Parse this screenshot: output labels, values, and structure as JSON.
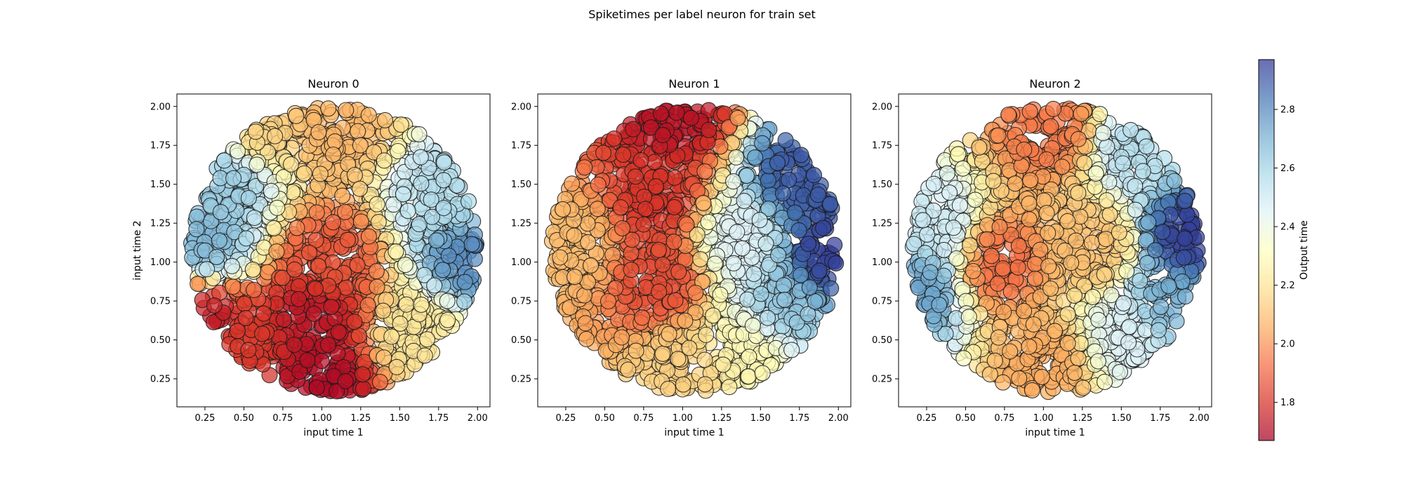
{
  "figure_title": "Spiketimes per label neuron for train set",
  "colorbar": {
    "label": "Output time",
    "range": [
      1.67,
      2.97
    ],
    "ticks": [
      "1.8",
      "2.0",
      "2.2",
      "2.4",
      "2.6",
      "2.8"
    ],
    "tick_values": [
      1.8,
      2.0,
      2.2,
      2.4,
      2.6,
      2.8
    ],
    "colormap": "RdYlBu",
    "colormap_stops": [
      "#a50026",
      "#d73027",
      "#f46d43",
      "#fdae61",
      "#fee090",
      "#ffffbf",
      "#e0f3f8",
      "#abd9e9",
      "#74add1",
      "#4575b4",
      "#313695"
    ]
  },
  "chart_data": [
    {
      "type": "scatter",
      "title": "Neuron 0",
      "xlabel": "input time 1",
      "ylabel": "input time 2",
      "xlim": [
        0.07,
        2.08
      ],
      "ylim": [
        0.07,
        2.08
      ],
      "xticks": [
        "0.25",
        "0.50",
        "0.75",
        "1.00",
        "1.25",
        "1.50",
        "1.75",
        "2.00"
      ],
      "yticks": [
        "0.25",
        "0.50",
        "0.75",
        "1.00",
        "1.25",
        "1.50",
        "1.75",
        "2.00"
      ],
      "color_field": "output time",
      "points_description_field": {
        "disk_center": [
          1.08,
          1.08
        ],
        "disk_radius": 0.92
      },
      "sample_points": [
        {
          "x": 1.0,
          "y": 0.25,
          "c": 1.7
        },
        {
          "x": 0.95,
          "y": 0.65,
          "c": 1.72
        },
        {
          "x": 1.05,
          "y": 1.0,
          "c": 1.88
        },
        {
          "x": 0.6,
          "y": 1.9,
          "c": 2.15
        },
        {
          "x": 1.1,
          "y": 1.9,
          "c": 2.08
        },
        {
          "x": 0.25,
          "y": 1.1,
          "c": 2.7
        },
        {
          "x": 0.35,
          "y": 1.5,
          "c": 2.62
        },
        {
          "x": 1.95,
          "y": 1.05,
          "c": 2.8
        },
        {
          "x": 1.8,
          "y": 1.4,
          "c": 2.55
        },
        {
          "x": 1.6,
          "y": 0.55,
          "c": 2.22
        },
        {
          "x": 0.5,
          "y": 0.45,
          "c": 1.82
        },
        {
          "x": 0.25,
          "y": 0.68,
          "c": 1.72
        }
      ]
    },
    {
      "type": "scatter",
      "title": "Neuron 1",
      "xlabel": "input time 1",
      "ylabel": "",
      "xlim": [
        0.07,
        2.08
      ],
      "ylim": [
        0.07,
        2.08
      ],
      "xticks": [
        "0.25",
        "0.50",
        "0.75",
        "1.00",
        "1.25",
        "1.50",
        "1.75",
        "2.00"
      ],
      "yticks": [
        "0.25",
        "0.50",
        "0.75",
        "1.00",
        "1.25",
        "1.50",
        "1.75",
        "2.00"
      ],
      "color_field": "output time",
      "sample_points": [
        {
          "x": 0.95,
          "y": 1.95,
          "c": 1.72
        },
        {
          "x": 0.85,
          "y": 1.4,
          "c": 1.8
        },
        {
          "x": 0.85,
          "y": 0.9,
          "c": 1.85
        },
        {
          "x": 0.3,
          "y": 1.1,
          "c": 2.1
        },
        {
          "x": 1.0,
          "y": 0.3,
          "c": 2.15
        },
        {
          "x": 1.45,
          "y": 0.45,
          "c": 2.28
        },
        {
          "x": 1.95,
          "y": 1.05,
          "c": 2.96
        },
        {
          "x": 1.75,
          "y": 1.55,
          "c": 2.9
        },
        {
          "x": 1.65,
          "y": 0.7,
          "c": 2.65
        },
        {
          "x": 1.35,
          "y": 1.15,
          "c": 2.45
        }
      ]
    },
    {
      "type": "scatter",
      "title": "Neuron 2",
      "xlabel": "input time 1",
      "ylabel": "",
      "xlim": [
        0.07,
        2.08
      ],
      "ylim": [
        0.07,
        2.08
      ],
      "xticks": [
        "0.25",
        "0.50",
        "0.75",
        "1.00",
        "1.25",
        "1.50",
        "1.75",
        "2.00"
      ],
      "yticks": [
        "0.25",
        "0.50",
        "0.75",
        "1.00",
        "1.25",
        "1.50",
        "1.75",
        "2.00"
      ],
      "color_field": "output time",
      "sample_points": [
        {
          "x": 0.7,
          "y": 1.0,
          "c": 1.92
        },
        {
          "x": 1.05,
          "y": 1.85,
          "c": 1.95
        },
        {
          "x": 1.05,
          "y": 0.35,
          "c": 2.05
        },
        {
          "x": 1.3,
          "y": 1.1,
          "c": 2.1
        },
        {
          "x": 0.3,
          "y": 1.2,
          "c": 2.5
        },
        {
          "x": 0.2,
          "y": 0.85,
          "c": 2.75
        },
        {
          "x": 1.95,
          "y": 1.15,
          "c": 2.96
        },
        {
          "x": 1.85,
          "y": 0.75,
          "c": 2.7
        },
        {
          "x": 1.6,
          "y": 1.75,
          "c": 2.55
        },
        {
          "x": 1.5,
          "y": 0.5,
          "c": 2.45
        }
      ]
    }
  ]
}
